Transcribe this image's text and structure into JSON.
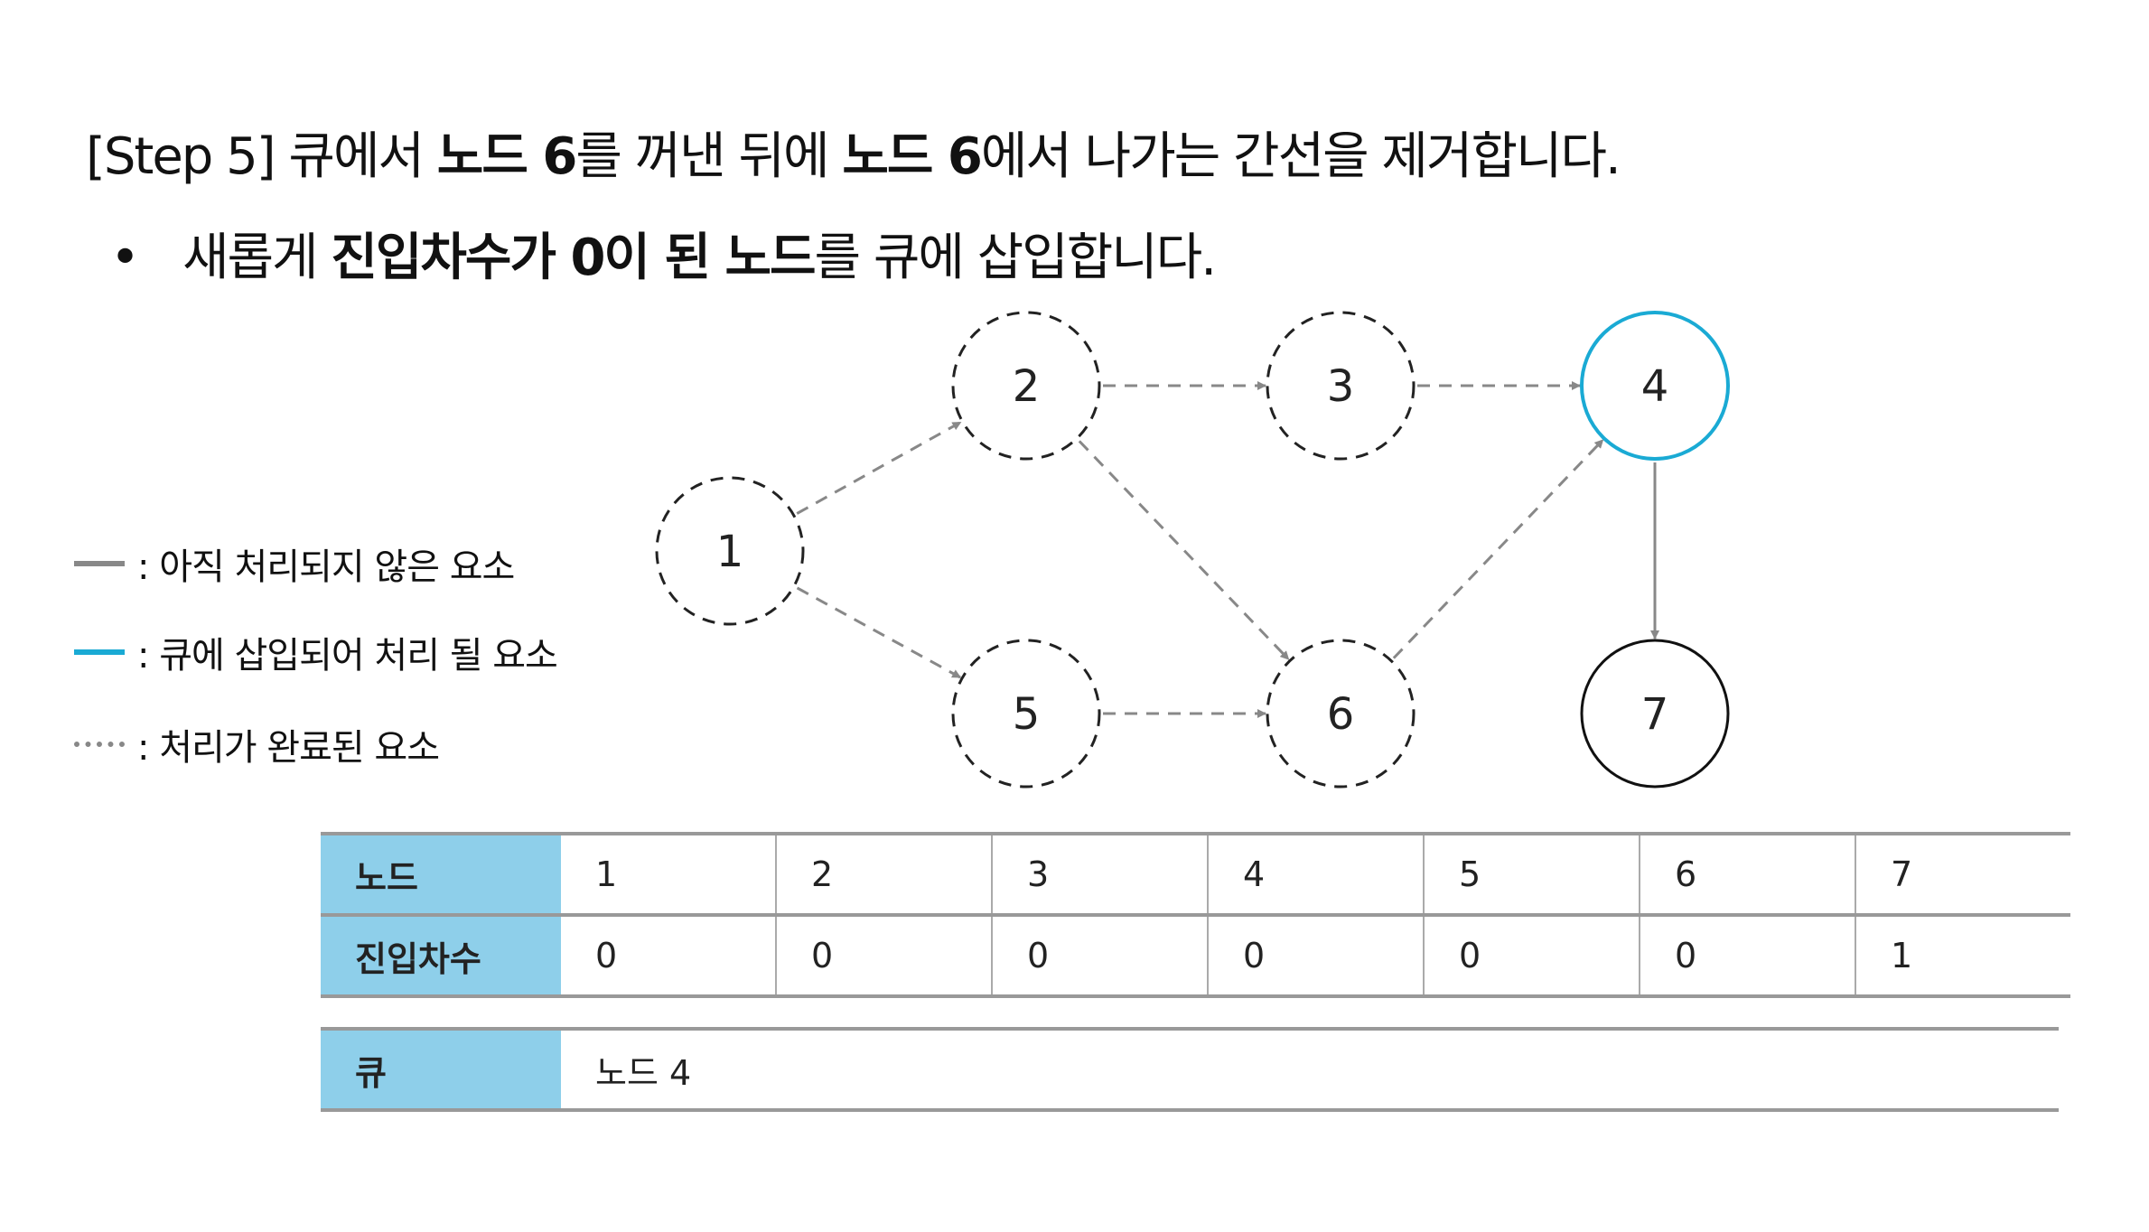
{
  "title": {
    "prefix": "[Step 5] 큐에서 ",
    "b1": "노드 6",
    "mid1": "를 꺼낸 뒤에 ",
    "b2": "노드 6",
    "suffix": "에서 나가는 간선을 제거합니다."
  },
  "bullet": {
    "symbol": "•",
    "prefix": "새롭게 ",
    "bold": "진입차수가 0이 된 노드",
    "suffix": "를 큐에 삽입합니다."
  },
  "legend": [
    {
      "label": ": 아직 처리되지 않은 요소",
      "style": "solid",
      "color": "#888888"
    },
    {
      "label": ": 큐에 삽입되어 처리 될 요소",
      "style": "solid",
      "color": "#1aaad4"
    },
    {
      "label": ": 처리가 완료된 요소",
      "style": "dotted",
      "color": "#888888"
    }
  ],
  "graph": {
    "nodes": [
      {
        "id": "1",
        "state": "done"
      },
      {
        "id": "2",
        "state": "done"
      },
      {
        "id": "3",
        "state": "done"
      },
      {
        "id": "4",
        "state": "queued"
      },
      {
        "id": "5",
        "state": "done"
      },
      {
        "id": "6",
        "state": "done"
      },
      {
        "id": "7",
        "state": "pending"
      }
    ],
    "edges": [
      {
        "from": "1",
        "to": "2",
        "state": "done"
      },
      {
        "from": "1",
        "to": "5",
        "state": "done"
      },
      {
        "from": "2",
        "to": "3",
        "state": "done"
      },
      {
        "from": "2",
        "to": "6",
        "state": "done"
      },
      {
        "from": "3",
        "to": "4",
        "state": "done"
      },
      {
        "from": "5",
        "to": "6",
        "state": "done"
      },
      {
        "from": "6",
        "to": "4",
        "state": "done"
      },
      {
        "from": "4",
        "to": "7",
        "state": "pending"
      }
    ]
  },
  "table": {
    "row_headers": [
      "노드",
      "진입차수"
    ],
    "nodes": [
      "1",
      "2",
      "3",
      "4",
      "5",
      "6",
      "7"
    ],
    "indegree": [
      "0",
      "0",
      "0",
      "0",
      "0",
      "0",
      "1"
    ]
  },
  "queue": {
    "label": "큐",
    "value": "노드 4"
  },
  "colors": {
    "header_bg": "#8ecfea",
    "queued": "#1aaad4",
    "edge": "#888888"
  }
}
